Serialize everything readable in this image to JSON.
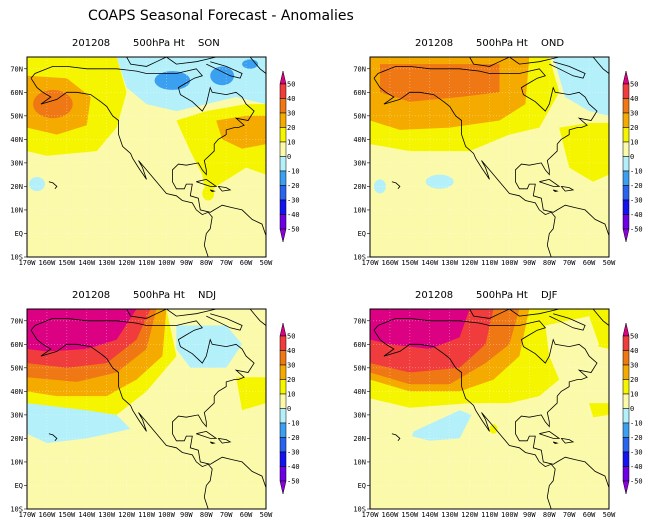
{
  "title": "COAPS Seasonal Forecast - Anomalies",
  "panels": [
    {
      "date": "201208",
      "variable": "500hPa Ht",
      "season": "SON"
    },
    {
      "date": "201208",
      "variable": "500hPa Ht",
      "season": "OND"
    },
    {
      "date": "201208",
      "variable": "500hPa Ht",
      "season": "NDJ"
    },
    {
      "date": "201208",
      "variable": "500hPa Ht",
      "season": "DJF"
    }
  ],
  "axes": {
    "lat_labels": [
      "70N",
      "60N",
      "50N",
      "40N",
      "30N",
      "20N",
      "10N",
      "EQ",
      "10S"
    ],
    "lat_values": [
      70,
      60,
      50,
      40,
      30,
      20,
      10,
      0,
      -10
    ],
    "lon_labels": [
      "170W",
      "160W",
      "150W",
      "140W",
      "130W",
      "120W",
      "110W",
      "100W",
      "90W",
      "80W",
      "70W",
      "60W",
      "50W"
    ],
    "lon_values": [
      -170,
      -160,
      -150,
      -140,
      -130,
      -120,
      -110,
      -100,
      -90,
      -80,
      -70,
      -60,
      -50
    ],
    "lon_range": [
      -170,
      -50
    ],
    "lat_range": [
      -10,
      75
    ]
  },
  "colorbar": {
    "labels": [
      "50",
      "40",
      "30",
      "20",
      "10",
      "0",
      "-10",
      "-20",
      "-30",
      "-40",
      "-50"
    ],
    "colors_high_to_low": [
      "#dc0082",
      "#f03c3c",
      "#f07814",
      "#f5aa00",
      "#f5f500",
      "#fafaaa",
      "#b4f0fa",
      "#3ca0f0",
      "#2864f0",
      "#1414f0",
      "#6e00e6",
      "#8c00dc"
    ]
  }
}
